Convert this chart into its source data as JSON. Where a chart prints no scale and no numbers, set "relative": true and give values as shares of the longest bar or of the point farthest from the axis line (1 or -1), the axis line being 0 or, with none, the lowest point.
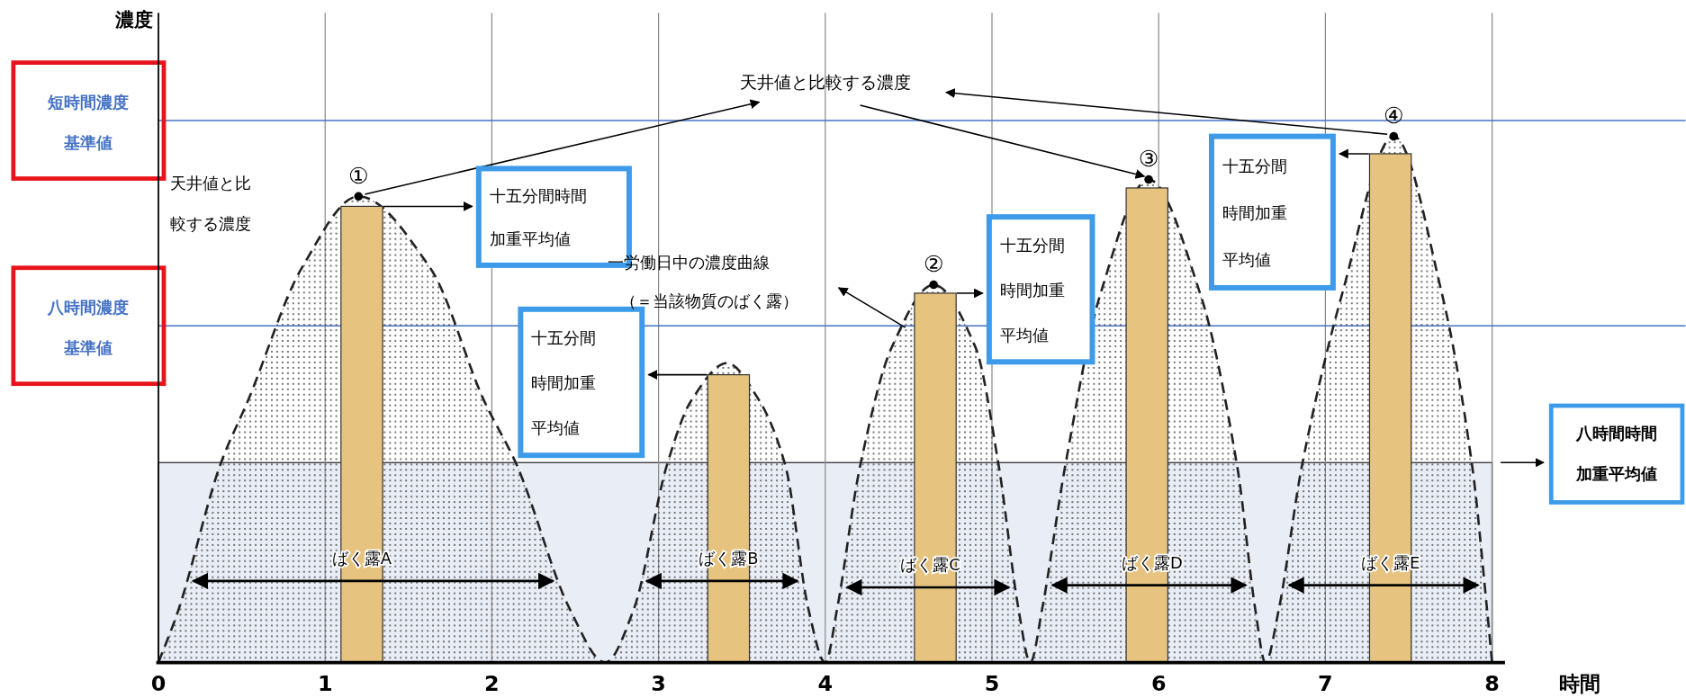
{
  "chart_data": {
    "type": "area",
    "xlabel": "時間",
    "relative": true,
    "xlim": [
      0,
      8
    ],
    "xticks": [
      0,
      1,
      2,
      3,
      4,
      5,
      6,
      7,
      8
    ],
    "grid": "x",
    "line_style": "dashed",
    "series": [
      {
        "color": "#555555",
        "x": [
          0,
          0.12,
          0.37,
          0.54,
          0.86,
          1.2,
          1.63,
          1.95,
          2.15,
          2.47,
          2.68,
          2.85,
          3.05,
          3.2,
          3.41,
          3.6,
          3.76,
          3.9,
          4.0,
          4.07,
          4.21,
          4.4,
          4.65,
          4.9,
          5.04,
          5.16,
          5.23,
          5.3,
          5.44,
          5.65,
          5.94,
          6.25,
          6.47,
          6.58,
          6.64,
          6.72,
          6.86,
          7.1,
          7.41,
          7.7,
          7.88,
          7.97,
          8
        ],
        "values": [
          0,
          0.1,
          0.375,
          0.5,
          0.75,
          0.886,
          0.75,
          0.5,
          0.375,
          0.1,
          0,
          0.1,
          0.375,
          0.5,
          0.569,
          0.5,
          0.375,
          0.1,
          0,
          0.1,
          0.375,
          0.6,
          0.718,
          0.6,
          0.375,
          0.1,
          0,
          0.1,
          0.375,
          0.7,
          0.918,
          0.7,
          0.375,
          0.1,
          0,
          0.1,
          0.375,
          0.7,
          1.0,
          0.7,
          0.375,
          0.1,
          0
        ]
      },
      {
        "type": "bar",
        "color": "#e6c47f",
        "x": [
          1.22,
          3.42,
          4.66,
          5.93,
          7.39
        ],
        "values": [
          0.867,
          0.547,
          0.702,
          0.902,
          0.967
        ]
      }
    ],
    "ref_lines": [
      {
        "axis": "y",
        "value": 1.03,
        "label": "短時間濃度基準値",
        "color": "#4472c4"
      },
      {
        "axis": "y",
        "value": 0.64,
        "label": "八時間濃度基準値",
        "color": "#4472c4"
      }
    ],
    "bands": [
      {
        "axis": "y",
        "from": 0,
        "to": 0.38,
        "label": "八時間時間加重平均値",
        "color": "#e9edf6"
      }
    ],
    "annotations": [
      {
        "text": "①",
        "x": 1.2,
        "y": 0.886
      },
      {
        "text": "②",
        "x": 4.65,
        "y": 0.718
      },
      {
        "text": "③",
        "x": 5.94,
        "y": 0.918
      },
      {
        "text": "④",
        "x": 7.41,
        "y": 1.0
      },
      "天井値と比較する濃度",
      "天井値と比較する濃度",
      "十五分間時間加重平均値",
      "十五分間時間加重平均値",
      "十五分間時間加重平均値",
      "十五分間時間加重平均値",
      "一労働日中の濃度曲線（＝当該物質のばく露）",
      {
        "text": "ばく露A",
        "x": 1.22,
        "y": 0.155
      },
      {
        "text": "ばく露B",
        "x": 3.42,
        "y": 0.155
      },
      {
        "text": "ばく露C",
        "x": 4.63,
        "y": 0.143
      },
      {
        "text": "ばく露D",
        "x": 5.96,
        "y": 0.147
      },
      {
        "text": "ばく露E",
        "x": 7.39,
        "y": 0.147
      },
      "濃度"
    ]
  }
}
